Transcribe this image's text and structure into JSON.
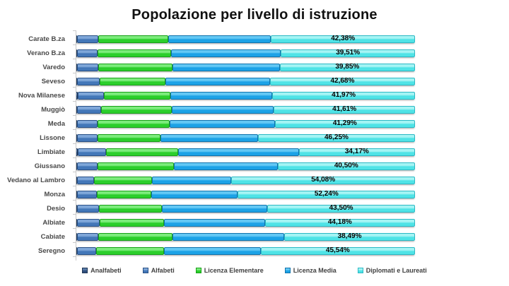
{
  "chart_data": {
    "type": "bar",
    "orientation": "horizontal",
    "stacked": true,
    "percent_stacked": true,
    "title": "Popolazione per livello di istruzione",
    "xlabel": "",
    "ylabel": "",
    "xlim": [
      0,
      100
    ],
    "grid": false,
    "legend_position": "bottom",
    "background_color": "#ffffff",
    "axis_color": "#c9c9c9",
    "categories": [
      "Carate B.za",
      "Verano B.za",
      "Varedo",
      "Seveso",
      "Nova Milanese",
      "Muggiò",
      "Meda",
      "Lissone",
      "Limbiate",
      "Giussano",
      "Vedano al Lambro",
      "Monza",
      "Desio",
      "Albiate",
      "Cabiate",
      "Seregno"
    ],
    "series": [
      {
        "name": "Analfabeti",
        "key": "analfabeti",
        "color": "#2F4E7D",
        "highlight": "#5A7CA9",
        "border": "#203756",
        "values": [
          0.5,
          0.5,
          0.5,
          0.5,
          0.6,
          0.5,
          0.5,
          0.5,
          0.7,
          0.5,
          0.4,
          0.5,
          0.5,
          0.5,
          0.5,
          0.5
        ]
      },
      {
        "name": "Alfabeti",
        "key": "alfabeti",
        "color": "#4377B8",
        "highlight": "#7FA7D9",
        "border": "#2A5186",
        "values": [
          6.1,
          5.9,
          6.2,
          6.6,
          7.8,
          7.0,
          5.9,
          5.9,
          8.2,
          6.0,
          5.1,
          5.7,
          6.4,
          6.6,
          6.2,
          5.6
        ]
      },
      {
        "name": "Licenza Elementare",
        "key": "licenza-elementare",
        "color": "#2BCE2B",
        "highlight": "#7CEC7C",
        "border": "#17A017",
        "values": [
          20.6,
          21.8,
          21.9,
          19.3,
          19.6,
          20.8,
          21.3,
          18.5,
          21.3,
          22.5,
          17.0,
          16.1,
          18.6,
          18.9,
          21.8,
          20.0
        ]
      },
      {
        "name": "Licenza Media",
        "key": "licenza-media",
        "color": "#1CA2E6",
        "highlight": "#63C8F4",
        "border": "#1173AC",
        "values": [
          30.4,
          32.3,
          31.55,
          30.9,
          30.0,
          30.1,
          31.0,
          28.85,
          35.6,
          30.5,
          23.4,
          25.5,
          31.0,
          29.8,
          33.0,
          28.4
        ]
      },
      {
        "name": "Diplomati e Laureati",
        "key": "diplomati-laureati",
        "color": "#4FE3E6",
        "highlight": "#A5F4F4",
        "border": "#2CB9C4",
        "values": [
          42.38,
          39.51,
          39.85,
          42.68,
          41.97,
          41.61,
          41.29,
          46.25,
          34.17,
          40.5,
          54.08,
          52.24,
          43.5,
          44.18,
          38.49,
          45.54
        ]
      }
    ],
    "value_labels": [
      "42,38%",
      "39,51%",
      "39,85%",
      "42,68%",
      "41,97%",
      "41,61%",
      "41,29%",
      "46,25%",
      "34,17%",
      "40,50%",
      "54,08%",
      "52,24%",
      "43,50%",
      "44,18%",
      "38,49%",
      "45,54%"
    ],
    "value_labels_series": "Diplomati e Laureati"
  }
}
